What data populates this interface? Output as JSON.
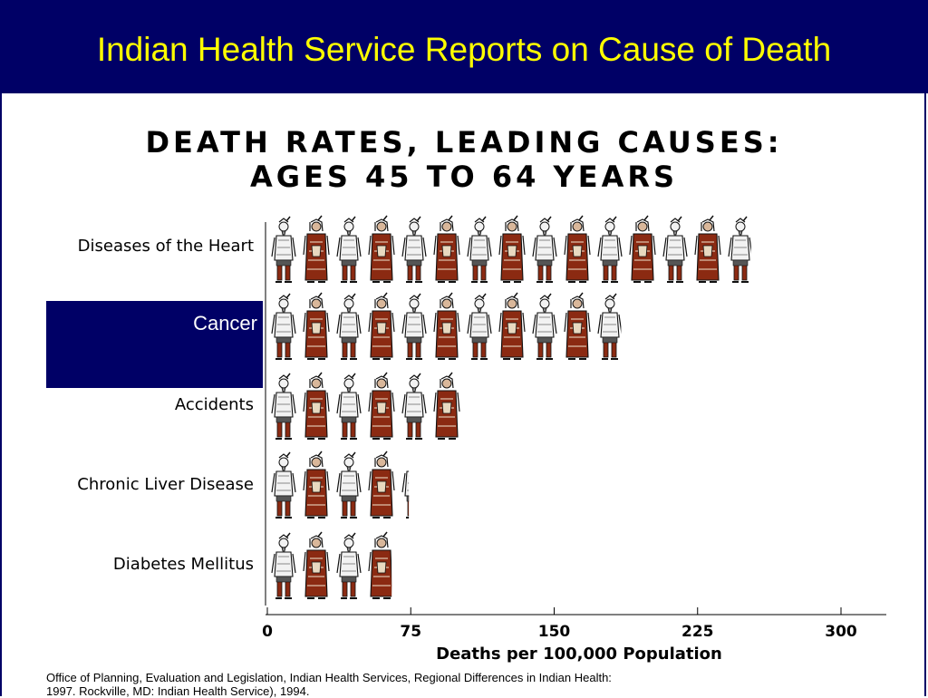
{
  "slide": {
    "title": "Indian Health Service Reports on Cause of Death",
    "source_line1": "Office of Planning, Evaluation and Legislation,  Indian Health Services, Regional Differences in Indian Health:",
    "source_line2": "1997.  Rockville, MD: Indian Health Service),  1994."
  },
  "colors": {
    "header_bg": "#000066",
    "title_text": "#ffff00",
    "highlight_bg": "#000066",
    "figure_red": "#8b2a12",
    "figure_white": "#f2f2f2"
  },
  "chart_data": {
    "type": "bar",
    "title_line1": "DEATH RATES, LEADING CAUSES:",
    "title_line2": "AGES 45 TO 64 YEARS",
    "categories": [
      "Diseases of the Heart",
      "Cancer",
      "Accidents",
      "Chronic Liver Disease",
      "Diabetes Mellitus"
    ],
    "values": [
      253,
      185,
      103,
      74,
      65
    ],
    "highlighted_category": "Cancer",
    "xlabel": "Deaths per 100,000 Population",
    "ylabel": "",
    "xlim": [
      0,
      325
    ],
    "xticks": [
      "0",
      "75",
      "150",
      "225",
      "300"
    ],
    "xtick_values": [
      0,
      75,
      150,
      225,
      300
    ],
    "units_per_figure": 18.5,
    "figure_icon": "person-figure-icon",
    "grid": false
  }
}
